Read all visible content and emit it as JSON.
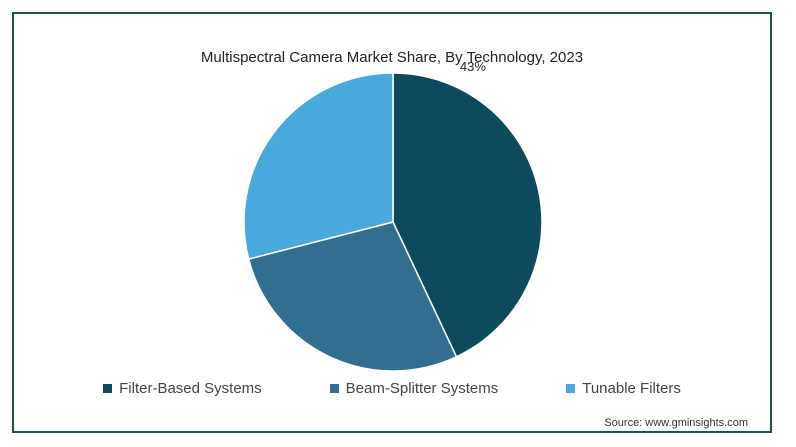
{
  "chart_data": {
    "type": "pie",
    "title": "Multispectral Camera Market Share, By Technology, 2023",
    "categories": [
      "Filter-Based Systems",
      "Beam-Splitter Systems",
      "Tunable Filters"
    ],
    "values": [
      43,
      28,
      29
    ],
    "labels_shown": [
      "43%",
      "",
      ""
    ],
    "colors": [
      "#0d4a5e",
      "#326e8f",
      "#49a9dc"
    ],
    "legend_position": "bottom",
    "start_angle_deg": 0,
    "direction": "clockwise"
  },
  "source": "Source: www.gminsights.com"
}
